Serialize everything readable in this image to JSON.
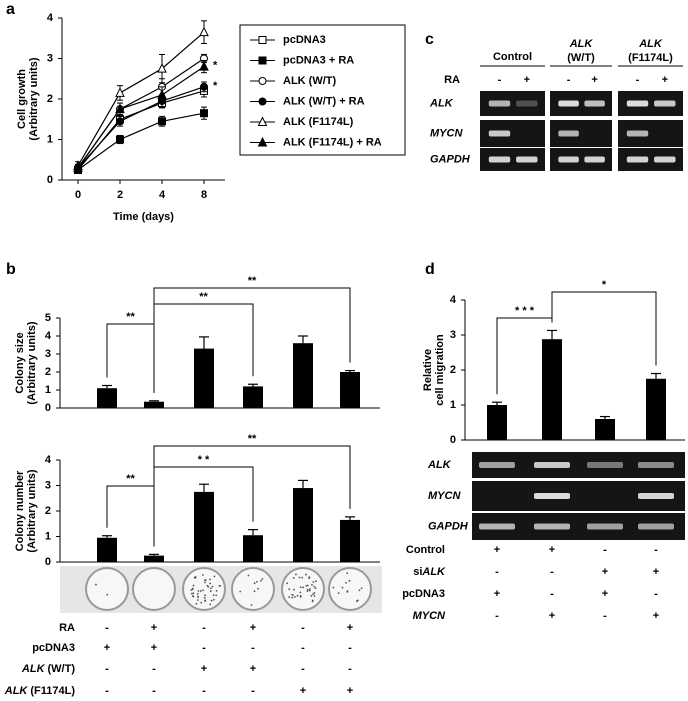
{
  "panel_labels": [
    "a",
    "b",
    "c",
    "d"
  ],
  "chart_data": [
    {
      "type": "line",
      "x_label": "Time (days)",
      "y_label": [
        "Cell growth",
        "(Arbitrary units)"
      ],
      "categories": [
        "0",
        "2",
        "4",
        "8"
      ],
      "ylim": [
        0,
        4
      ],
      "yticks": [
        0,
        1,
        2,
        3,
        4
      ],
      "series": [
        {
          "name": "pcDNA3",
          "color": "#000000",
          "marker": "square",
          "filled": false,
          "values": [
            0.25,
            1.5,
            1.9,
            2.2
          ],
          "errors": [
            0.08,
            0.12,
            0.12,
            0.15
          ]
        },
        {
          "name": "pcDNA3 + RA",
          "color": "#000000",
          "marker": "square",
          "filled": true,
          "values": [
            0.25,
            1.0,
            1.45,
            1.65
          ],
          "errors": [
            0.08,
            0.1,
            0.12,
            0.15
          ]
        },
        {
          "name": "ALK (W/T)",
          "color": "#000000",
          "marker": "circle",
          "filled": false,
          "values": [
            0.3,
            1.75,
            2.3,
            3.0
          ],
          "errors": [
            0.08,
            0.15,
            0.2,
            0.1
          ]
        },
        {
          "name": "ALK (W/T) + RA",
          "color": "#000000",
          "marker": "circle",
          "filled": true,
          "values": [
            0.3,
            1.45,
            1.95,
            2.3
          ],
          "errors": [
            0.08,
            0.12,
            0.15,
            0.12
          ],
          "annotation": "*"
        },
        {
          "name": "ALK (F1174L)",
          "color": "#000000",
          "marker": "triangle",
          "filled": false,
          "values": [
            0.35,
            2.15,
            2.75,
            3.65
          ],
          "errors": [
            0.1,
            0.18,
            0.35,
            0.28
          ]
        },
        {
          "name": "ALK (F1174L) + RA",
          "color": "#000000",
          "marker": "triangle",
          "filled": true,
          "values": [
            0.3,
            1.75,
            2.1,
            2.8
          ],
          "errors": [
            0.08,
            0.15,
            0.2,
            0.15
          ],
          "annotation": "*"
        }
      ]
    },
    {
      "type": "bar",
      "y_label": [
        "Colony size",
        "(Arbitrary units)"
      ],
      "color": "#000000",
      "values": [
        1.1,
        0.35,
        3.3,
        1.2,
        3.6,
        2.0
      ],
      "errors": [
        0.15,
        0.05,
        0.65,
        0.12,
        0.4,
        0.08
      ],
      "ylim": [
        0,
        5
      ],
      "yticks": [
        0,
        1,
        2,
        3,
        4,
        5
      ],
      "significance": [
        "**",
        "**",
        "**"
      ]
    },
    {
      "type": "bar",
      "y_label": [
        "Colony number",
        "(Arbitrary units)"
      ],
      "color": "#000000",
      "values": [
        0.95,
        0.25,
        2.75,
        1.05,
        2.9,
        1.65
      ],
      "errors": [
        0.08,
        0.05,
        0.3,
        0.22,
        0.3,
        0.12
      ],
      "ylim": [
        0,
        4
      ],
      "yticks": [
        0,
        1,
        2,
        3,
        4
      ],
      "significance": [
        "**",
        "* *",
        "**"
      ]
    },
    {
      "type": "bar",
      "y_label": [
        "Relative",
        "cell migration"
      ],
      "color": "#000000",
      "values": [
        1.0,
        2.88,
        0.6,
        1.75
      ],
      "errors": [
        0.08,
        0.25,
        0.07,
        0.15
      ],
      "ylim": [
        0,
        4
      ],
      "yticks": [
        0,
        1,
        2,
        3,
        4
      ],
      "significance": [
        "* * *",
        "*"
      ]
    }
  ],
  "gel_c": {
    "treatment_label": "RA",
    "treatment": [
      "-",
      "+"
    ],
    "groups": [
      {
        "label": "Control"
      },
      {
        "gene": "ALK",
        "variant": "(W/T)"
      },
      {
        "gene": "ALK",
        "variant": "(F1174L)"
      }
    ],
    "rows": [
      "ALK",
      "MYCN",
      "GAPDH"
    ]
  },
  "table_b": {
    "rows": [
      {
        "label": "RA",
        "values": [
          "-",
          "+",
          "-",
          "+",
          "-",
          "+"
        ]
      },
      {
        "label": "pcDNA3",
        "values": [
          "+",
          "+",
          "-",
          "-",
          "-",
          "-"
        ]
      },
      {
        "gene": "ALK",
        "variant": "(W/T)",
        "values": [
          "-",
          "-",
          "+",
          "+",
          "-",
          "-"
        ]
      },
      {
        "gene": "ALK",
        "variant": "(F1174L)",
        "values": [
          "-",
          "-",
          "-",
          "-",
          "+",
          "+"
        ]
      }
    ]
  },
  "gel_d": {
    "rows": [
      "ALK",
      "MYCN",
      "GAPDH"
    ]
  },
  "table_d": {
    "rows": [
      {
        "label": "Control",
        "values": [
          "+",
          "+",
          "-",
          "-"
        ]
      },
      {
        "prefix": "si",
        "gene": "ALK",
        "values": [
          "-",
          "-",
          "+",
          "+"
        ]
      },
      {
        "label": "pcDNA3",
        "values": [
          "+",
          "-",
          "+",
          "-"
        ]
      },
      {
        "gene": "MYCN",
        "values": [
          "-",
          "+",
          "-",
          "+"
        ]
      }
    ]
  }
}
